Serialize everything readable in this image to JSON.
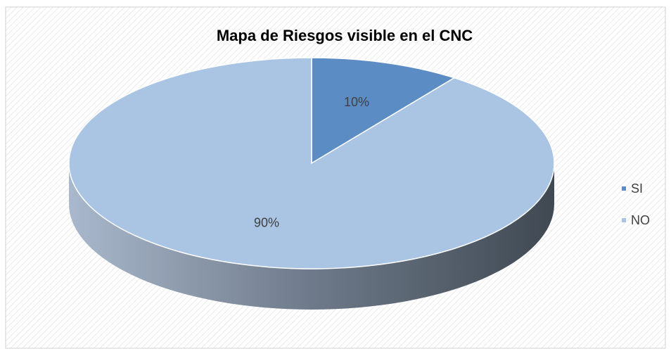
{
  "chart_data": {
    "type": "pie",
    "title": "Mapa de Riesgos visible en el CNC",
    "categories": [
      "SI",
      "NO"
    ],
    "values": [
      10,
      90
    ],
    "value_labels": [
      "10%",
      "90%"
    ],
    "colors": [
      "#5b8cc4",
      "#aac4e4"
    ],
    "legend": "right"
  }
}
